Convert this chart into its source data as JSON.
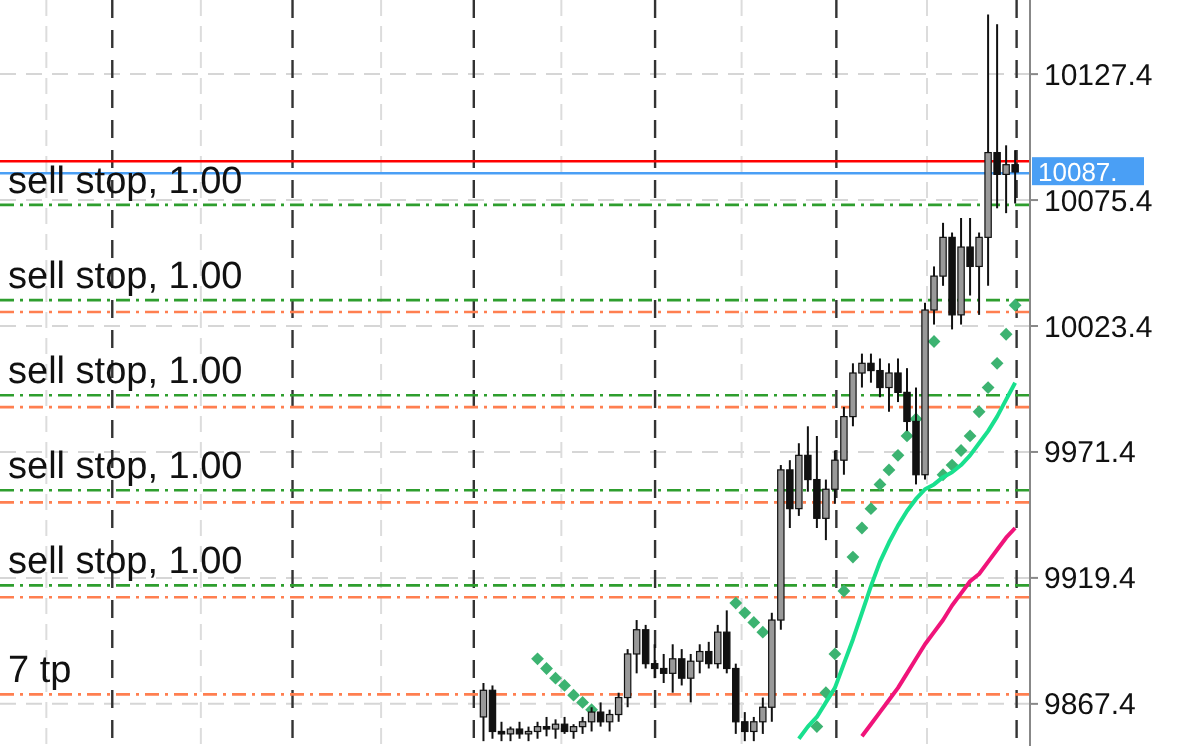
{
  "chart_data": {
    "type": "candlestick",
    "categories": [
      null,
      null,
      null,
      null,
      null,
      null,
      null,
      null,
      null,
      null,
      null,
      null,
      null,
      null,
      null,
      null,
      null,
      null,
      null,
      null,
      null,
      null,
      null,
      null,
      null,
      null,
      null,
      null,
      null,
      null,
      null,
      null,
      null,
      null,
      null,
      null,
      null,
      null,
      null,
      null,
      null,
      null,
      null,
      null,
      null,
      null,
      null,
      null,
      null,
      null,
      null,
      null,
      null,
      null,
      null,
      null,
      null,
      null,
      null,
      null,
      null,
      null,
      null,
      null,
      null,
      null,
      null,
      null,
      null,
      null,
      null,
      null,
      null,
      null,
      null,
      null,
      null,
      null,
      null,
      null,
      null,
      null,
      null,
      null,
      null,
      null,
      null,
      null,
      null,
      null,
      null,
      null,
      null,
      null,
      null,
      null,
      null,
      null,
      null,
      null,
      null,
      null,
      null,
      null,
      null,
      null,
      null,
      null,
      null,
      null,
      null,
      null,
      null,
      null
    ],
    "ohlc": [
      null,
      null,
      null,
      null,
      null,
      null,
      null,
      null,
      null,
      null,
      null,
      null,
      null,
      null,
      null,
      null,
      null,
      null,
      null,
      null,
      null,
      null,
      null,
      null,
      null,
      null,
      null,
      null,
      null,
      null,
      null,
      null,
      null,
      null,
      null,
      null,
      null,
      null,
      null,
      null,
      null,
      null,
      null,
      null,
      null,
      null,
      null,
      null,
      null,
      null,
      null,
      null,
      null,
      [
        9862,
        9876,
        9852,
        9873
      ],
      [
        9873,
        9875,
        9853,
        9856
      ],
      [
        9856,
        9860,
        9852,
        9855
      ],
      [
        9855,
        9858,
        9852,
        9857
      ],
      [
        9857,
        9860,
        9853,
        9855
      ],
      [
        9855,
        9858,
        9852,
        9856
      ],
      [
        9856,
        9860,
        9853,
        9858
      ],
      [
        9858,
        9862,
        9854,
        9857
      ],
      [
        9857,
        9861,
        9853,
        9859
      ],
      [
        9859,
        9862,
        9855,
        9856
      ],
      [
        9856,
        9859,
        9853,
        9858
      ],
      [
        9858,
        9862,
        9855,
        9860
      ],
      [
        9860,
        9866,
        9856,
        9864
      ],
      [
        9864,
        9868,
        9858,
        9860
      ],
      [
        9860,
        9865,
        9856,
        9863
      ],
      [
        9863,
        9872,
        9860,
        9870
      ],
      [
        9870,
        9890,
        9866,
        9888
      ],
      [
        9888,
        9902,
        9880,
        9898
      ],
      [
        9898,
        9900,
        9882,
        9884
      ],
      [
        9884,
        9892,
        9878,
        9882
      ],
      [
        9882,
        9888,
        9876,
        9880
      ],
      [
        9880,
        9892,
        9872,
        9886
      ],
      [
        9886,
        9890,
        9875,
        9878
      ],
      [
        9878,
        9888,
        9868,
        9885
      ],
      [
        9885,
        9892,
        9880,
        9889
      ],
      [
        9889,
        9893,
        9882,
        9884
      ],
      [
        9884,
        9900,
        9882,
        9897
      ],
      [
        9897,
        9906,
        9880,
        9882
      ],
      [
        9882,
        9884,
        9855,
        9860
      ],
      [
        9860,
        9864,
        9852,
        9856
      ],
      [
        9856,
        9862,
        9852,
        9860
      ],
      [
        9860,
        9870,
        9855,
        9866
      ],
      [
        9866,
        9905,
        9860,
        9902
      ],
      [
        9902,
        9966,
        9898,
        9964
      ],
      [
        9964,
        9968,
        9940,
        9948
      ],
      [
        9948,
        9975,
        9945,
        9970
      ],
      [
        9970,
        9982,
        9955,
        9960
      ],
      [
        9960,
        9978,
        9940,
        9944
      ],
      [
        9944,
        9960,
        9935,
        9956
      ],
      [
        9956,
        9972,
        9950,
        9968
      ],
      [
        9968,
        9990,
        9962,
        9986
      ],
      [
        9986,
        10008,
        9982,
        10004
      ],
      [
        10004,
        10012,
        9998,
        10008
      ],
      [
        10008,
        10012,
        10000,
        10005
      ],
      [
        10005,
        10010,
        9994,
        9998
      ],
      [
        9998,
        10008,
        9988,
        10004
      ],
      [
        10004,
        10010,
        9992,
        9996
      ],
      [
        9996,
        10006,
        9980,
        9984
      ],
      [
        9984,
        9998,
        9958,
        9962
      ],
      [
        9962,
        10033,
        9960,
        10030
      ],
      [
        10030,
        10048,
        10024,
        10044
      ],
      [
        10044,
        10066,
        10040,
        10060
      ],
      [
        10060,
        10062,
        10022,
        10028
      ],
      [
        10028,
        10068,
        10024,
        10056
      ],
      [
        10056,
        10068,
        10036,
        10048
      ],
      [
        10048,
        10062,
        10028,
        10060
      ],
      [
        10060,
        10152,
        10040,
        10095
      ],
      [
        10095,
        10148,
        10072,
        10086
      ],
      [
        10086,
        10098,
        10070,
        10090
      ],
      [
        10090,
        10096,
        10074,
        10087
      ],
      null
    ],
    "series": [
      {
        "type": "scatter",
        "marker": "diamond",
        "color": "#3cb371",
        "values": [
          null,
          null,
          null,
          null,
          null,
          null,
          null,
          null,
          null,
          null,
          null,
          null,
          null,
          null,
          null,
          null,
          null,
          null,
          null,
          null,
          null,
          null,
          null,
          null,
          null,
          null,
          null,
          null,
          null,
          null,
          null,
          null,
          null,
          null,
          null,
          null,
          null,
          null,
          null,
          null,
          null,
          null,
          null,
          null,
          null,
          null,
          null,
          null,
          null,
          null,
          null,
          null,
          null,
          null,
          null,
          null,
          null,
          null,
          null,
          9886,
          9882,
          9878,
          9875,
          9871,
          9868,
          9865,
          null,
          null,
          null,
          null,
          null,
          null,
          null,
          null,
          null,
          null,
          null,
          null,
          null,
          null,
          null,
          9909,
          9905,
          9901,
          9897,
          null,
          null,
          null,
          null,
          null,
          9858,
          9872,
          9888,
          9914,
          9928,
          9940,
          9948,
          9958,
          9964,
          9970,
          9978,
          9985,
          null,
          10017,
          9962,
          9966,
          9972,
          9978,
          9988,
          9998,
          10008,
          10020,
          10032,
          null
        ]
      },
      {
        "type": "line",
        "color": "#19e08e",
        "values": [
          null,
          null,
          null,
          null,
          null,
          null,
          null,
          null,
          null,
          null,
          null,
          null,
          null,
          null,
          null,
          null,
          null,
          null,
          null,
          null,
          null,
          null,
          null,
          null,
          null,
          null,
          null,
          null,
          null,
          null,
          null,
          null,
          null,
          null,
          null,
          null,
          null,
          null,
          null,
          null,
          null,
          null,
          null,
          null,
          null,
          null,
          null,
          null,
          null,
          null,
          null,
          null,
          null,
          null,
          null,
          null,
          null,
          null,
          null,
          null,
          null,
          null,
          null,
          null,
          null,
          null,
          null,
          null,
          null,
          null,
          null,
          null,
          null,
          null,
          null,
          null,
          null,
          null,
          null,
          null,
          null,
          null,
          null,
          null,
          null,
          null,
          null,
          null,
          9853,
          9858,
          9862,
          9868,
          9874,
          9884,
          9894,
          9905,
          9916,
          9926,
          9934,
          9941,
          9947,
          9952,
          9956,
          9958,
          9961,
          9963,
          9966,
          9970,
          9975,
          9980,
          9986,
          9993,
          10000,
          null
        ]
      },
      {
        "type": "line",
        "color": "#f0147a",
        "values": [
          null,
          null,
          null,
          null,
          null,
          null,
          null,
          null,
          null,
          null,
          null,
          null,
          null,
          null,
          null,
          null,
          null,
          null,
          null,
          null,
          null,
          null,
          null,
          null,
          null,
          null,
          null,
          null,
          null,
          null,
          null,
          null,
          null,
          null,
          null,
          null,
          null,
          null,
          null,
          null,
          null,
          null,
          null,
          null,
          null,
          null,
          null,
          null,
          null,
          null,
          null,
          null,
          null,
          null,
          null,
          null,
          null,
          null,
          null,
          null,
          null,
          null,
          null,
          null,
          null,
          null,
          null,
          null,
          null,
          null,
          null,
          null,
          null,
          null,
          null,
          null,
          null,
          null,
          null,
          null,
          null,
          null,
          null,
          null,
          null,
          null,
          null,
          null,
          null,
          null,
          null,
          null,
          null,
          null,
          null,
          9854,
          9859,
          9864,
          9869,
          9874,
          9880,
          9886,
          9892,
          9897,
          9902,
          9908,
          9913,
          9918,
          9921,
          9926,
          9931,
          9936,
          9940,
          null
        ]
      }
    ],
    "ylim": [
      9850,
      10158
    ],
    "yticks": [
      9867.4,
      9919.4,
      9971.4,
      10023.4,
      10075.4,
      10127.4
    ],
    "grid": true,
    "ref_lines": [
      {
        "axis": "y",
        "value": 10091.4,
        "label": null,
        "color": "#ff0000",
        "line_style": "solid"
      },
      {
        "axis": "y",
        "value": 10086.5,
        "label": "10087.",
        "color": "#4a9ff5",
        "line_style": "solid"
      },
      {
        "axis": "y",
        "value": 10073.4,
        "label": "sell stop, 1.00",
        "color": "#2e9e2e",
        "line_style": "dashed"
      },
      {
        "axis": "y",
        "value": 10034.1,
        "label": "sell stop, 1.00",
        "color": "#2e9e2e",
        "line_style": "dashed"
      },
      {
        "axis": "y",
        "value": 9994.8,
        "label": "sell stop, 1.00",
        "color": "#2e9e2e",
        "line_style": "dashed"
      },
      {
        "axis": "y",
        "value": 9955.6,
        "label": "sell stop, 1.00",
        "color": "#2e9e2e",
        "line_style": "dashed"
      },
      {
        "axis": "y",
        "value": 9916.3,
        "label": "sell stop, 1.00",
        "color": "#2e9e2e",
        "line_style": "dashed"
      },
      {
        "axis": "y",
        "value": 10029.2,
        "label": null,
        "color": "#ff7f50",
        "line_style": "dashed"
      },
      {
        "axis": "y",
        "value": 9989.9,
        "label": null,
        "color": "#ff7f50",
        "line_style": "dashed"
      },
      {
        "axis": "y",
        "value": 9950.6,
        "label": null,
        "color": "#ff7f50",
        "line_style": "dashed"
      },
      {
        "axis": "y",
        "value": 9911.4,
        "label": null,
        "color": "#ff7f50",
        "line_style": "dashed"
      },
      {
        "axis": "y",
        "value": 9871.3,
        "label": "7 tp",
        "color": "#ff7f50",
        "line_style": "dashed"
      }
    ]
  }
}
